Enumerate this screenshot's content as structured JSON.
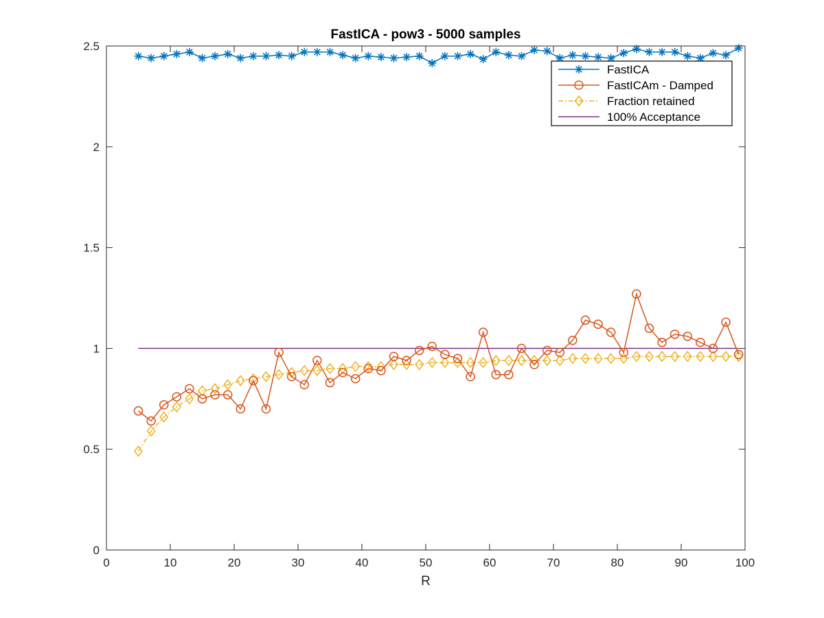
{
  "chart_data": {
    "type": "line",
    "title": "FastICA - pow3 - 5000 samples",
    "xlabel": "R",
    "ylabel": "",
    "xlim": [
      0,
      100
    ],
    "ylim": [
      0,
      2.5
    ],
    "xticks": [
      0,
      10,
      20,
      30,
      40,
      50,
      60,
      70,
      80,
      90,
      100
    ],
    "yticks": [
      0,
      0.5,
      1,
      1.5,
      2,
      2.5
    ],
    "xtick_labels": [
      "0",
      "10",
      "20",
      "30",
      "40",
      "50",
      "60",
      "70",
      "80",
      "90",
      "100"
    ],
    "ytick_labels": [
      "0",
      "0.5",
      "1",
      "1.5",
      "2",
      "2.5"
    ],
    "grid": false,
    "legend_position": "top-right",
    "x": [
      5,
      7,
      9,
      11,
      13,
      15,
      17,
      19,
      21,
      23,
      25,
      27,
      29,
      31,
      33,
      35,
      37,
      39,
      41,
      43,
      45,
      47,
      49,
      51,
      53,
      55,
      57,
      59,
      61,
      63,
      65,
      67,
      69,
      71,
      73,
      75,
      77,
      79,
      81,
      83,
      85,
      87,
      89,
      91,
      93,
      95,
      97,
      99
    ],
    "series": [
      {
        "name": "FastICA",
        "color": "#0072bd",
        "marker": "asterisk",
        "line_style": "solid",
        "values": [
          2.45,
          2.44,
          2.45,
          2.46,
          2.47,
          2.44,
          2.45,
          2.46,
          2.44,
          2.45,
          2.45,
          2.455,
          2.45,
          2.47,
          2.47,
          2.47,
          2.455,
          2.44,
          2.45,
          2.445,
          2.44,
          2.445,
          2.45,
          2.415,
          2.45,
          2.45,
          2.46,
          2.435,
          2.47,
          2.455,
          2.45,
          2.48,
          2.475,
          2.44,
          2.455,
          2.45,
          2.445,
          2.44,
          2.465,
          2.485,
          2.47,
          2.47,
          2.47,
          2.45,
          2.44,
          2.465,
          2.455,
          2.49
        ]
      },
      {
        "name": "FastICAm - Damped",
        "color": "#d95319",
        "marker": "circle",
        "line_style": "solid",
        "values": [
          0.69,
          0.64,
          0.72,
          0.76,
          0.8,
          0.75,
          0.77,
          0.77,
          0.7,
          0.84,
          0.7,
          0.98,
          0.86,
          0.82,
          0.94,
          0.83,
          0.88,
          0.85,
          0.9,
          0.89,
          0.96,
          0.94,
          0.99,
          1.01,
          0.97,
          0.95,
          0.86,
          1.08,
          0.87,
          0.87,
          1.0,
          0.92,
          0.99,
          0.98,
          1.04,
          1.14,
          1.12,
          1.08,
          0.98,
          1.27,
          1.1,
          1.03,
          1.07,
          1.06,
          1.03,
          1.0,
          1.13,
          0.97
        ]
      },
      {
        "name": "Fraction retained",
        "color": "#edb120",
        "marker": "diamond",
        "line_style": "dashdot",
        "values": [
          0.49,
          0.59,
          0.66,
          0.71,
          0.75,
          0.79,
          0.8,
          0.82,
          0.84,
          0.85,
          0.86,
          0.87,
          0.88,
          0.89,
          0.89,
          0.9,
          0.9,
          0.91,
          0.91,
          0.91,
          0.92,
          0.92,
          0.92,
          0.93,
          0.93,
          0.93,
          0.93,
          0.93,
          0.94,
          0.94,
          0.94,
          0.94,
          0.94,
          0.94,
          0.95,
          0.95,
          0.95,
          0.95,
          0.95,
          0.96,
          0.96,
          0.96,
          0.96,
          0.96,
          0.96,
          0.96,
          0.96,
          0.96
        ]
      },
      {
        "name": "100% Acceptance",
        "color": "#7e2f8e",
        "marker": "none",
        "line_style": "solid",
        "x": [
          5,
          99
        ],
        "values": [
          1,
          1
        ]
      }
    ]
  }
}
